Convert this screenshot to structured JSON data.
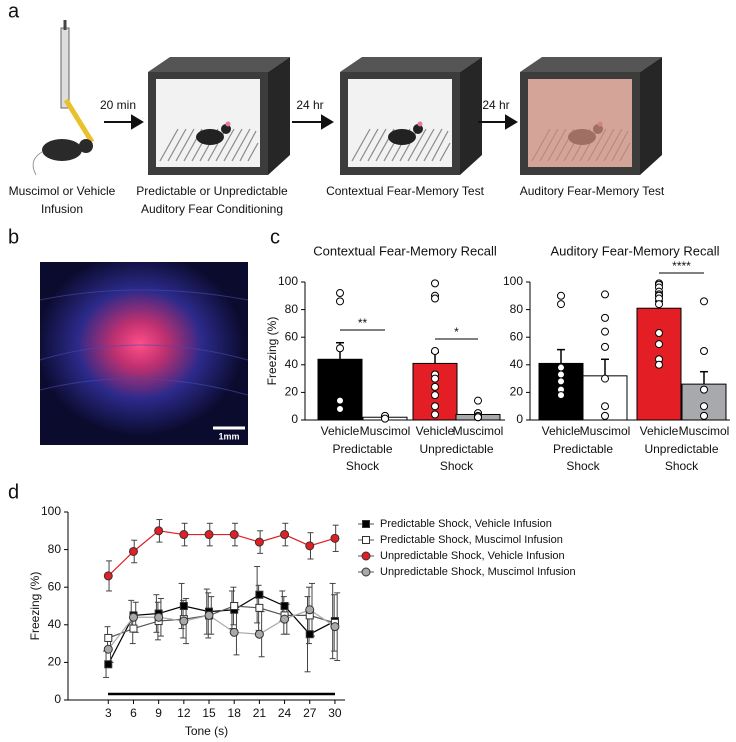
{
  "panel_labels": [
    "a",
    "b",
    "c",
    "d"
  ],
  "panel_a": {
    "steps": [
      [
        "Muscimol or Vehicle",
        "Infusion"
      ],
      [
        "Predictable or Unpredictable",
        "Auditory Fear Conditioning"
      ],
      [
        "Contextual Fear-Memory Test"
      ],
      [
        "Auditory Fear-Memory Test"
      ]
    ],
    "intervals": [
      "20 min",
      "24 hr",
      "24 hr"
    ]
  },
  "panel_b": {
    "scale_bar": "1mm"
  },
  "chart_data": [
    {
      "type": "bar",
      "title": "Contextual Fear-Memory Recall",
      "y_label": "Freezing (%)",
      "categories": [
        "Vehicle",
        "Muscimol",
        "Vehicle",
        "Muscimol"
      ],
      "groups": [
        [
          "Predictable",
          "Shock"
        ],
        [
          "Unpredictable",
          "Shock"
        ]
      ],
      "colors": [
        "#000000",
        "#ffffff",
        "#e31e24",
        "#a7a9ac"
      ],
      "values": [
        44,
        2,
        41,
        4
      ],
      "errors": [
        12,
        1,
        8,
        1.5
      ],
      "points": [
        [
          92,
          86,
          52,
          14,
          8
        ],
        [
          3,
          1
        ],
        [
          99,
          90,
          88,
          50,
          33,
          30,
          24,
          18,
          10,
          4
        ],
        [
          14,
          5,
          3,
          2,
          2
        ]
      ],
      "significance": [
        {
          "label": "**",
          "bars": [
            0,
            1
          ]
        },
        {
          "label": "*",
          "bars": [
            2,
            3
          ]
        }
      ],
      "ylim": [
        0,
        100
      ],
      "yticks": [
        0,
        20,
        40,
        60,
        80,
        100
      ]
    },
    {
      "type": "bar",
      "title": "Auditory Fear-Memory Recall",
      "categories": [
        "Vehicle",
        "Muscimol",
        "Vehicle",
        "Muscimol"
      ],
      "groups": [
        [
          "Predictable",
          "Shock"
        ],
        [
          "Unpredictable",
          "Shock"
        ]
      ],
      "colors": [
        "#000000",
        "#ffffff",
        "#e31e24",
        "#a7a9ac"
      ],
      "values": [
        41,
        32,
        81,
        26
      ],
      "errors": [
        10,
        12,
        5,
        9
      ],
      "points": [
        [
          90,
          84,
          38,
          33,
          28,
          22,
          18
        ],
        [
          91,
          74,
          64,
          53,
          30,
          10,
          3
        ],
        [
          99,
          98,
          96,
          93,
          91,
          90,
          88,
          84,
          63,
          55,
          44,
          40
        ],
        [
          86,
          50,
          22,
          10,
          3
        ]
      ],
      "significance": [
        {
          "label": "****",
          "bars": [
            2,
            3
          ]
        }
      ],
      "ylim": [
        0,
        100
      ],
      "yticks": [
        0,
        20,
        40,
        60,
        80,
        100
      ]
    },
    {
      "type": "line",
      "x_label": "Tone (s)",
      "y_label": "Freezing (%)",
      "x": [
        3,
        6,
        9,
        12,
        15,
        18,
        21,
        24,
        27,
        30
      ],
      "series": [
        {
          "name": "Predictable Shock, Vehicle Infusion",
          "color": "#000000",
          "marker": "square",
          "values": [
            19,
            45,
            46,
            50,
            47,
            48,
            56,
            50,
            35,
            42
          ],
          "errors": [
            7,
            8,
            10,
            12,
            12,
            10,
            15,
            8,
            20,
            20
          ]
        },
        {
          "name": "Predictable Shock, Muscimol Infusion",
          "color": "#ffffff",
          "marker": "square",
          "values": [
            33,
            38,
            42,
            43,
            45,
            50,
            49,
            45,
            45,
            41
          ],
          "errors": [
            6,
            8,
            10,
            10,
            12,
            10,
            12,
            10,
            15,
            15
          ]
        },
        {
          "name": "Unpredictable Shock, Vehicle Infusion",
          "color": "#e31e24",
          "marker": "circle",
          "values": [
            66,
            79,
            90,
            88,
            88,
            88,
            84,
            88,
            82,
            86
          ],
          "errors": [
            8,
            6,
            6,
            6,
            6,
            6,
            6,
            6,
            7,
            7
          ]
        },
        {
          "name": "Unpredictable Shock, Muscimol Infusion",
          "color": "#a7a9ac",
          "marker": "circle",
          "values": [
            27,
            44,
            44,
            42,
            45,
            36,
            35,
            43,
            48,
            39
          ],
          "errors": [
            7,
            8,
            10,
            12,
            10,
            12,
            12,
            8,
            14,
            18
          ]
        }
      ],
      "xlim": [
        -1.8,
        31.2
      ],
      "xticks": [
        3,
        6,
        9,
        12,
        15,
        18,
        21,
        24,
        27,
        30
      ],
      "ylim": [
        0,
        100
      ],
      "yticks": [
        0,
        20,
        40,
        60,
        80,
        100
      ]
    }
  ]
}
